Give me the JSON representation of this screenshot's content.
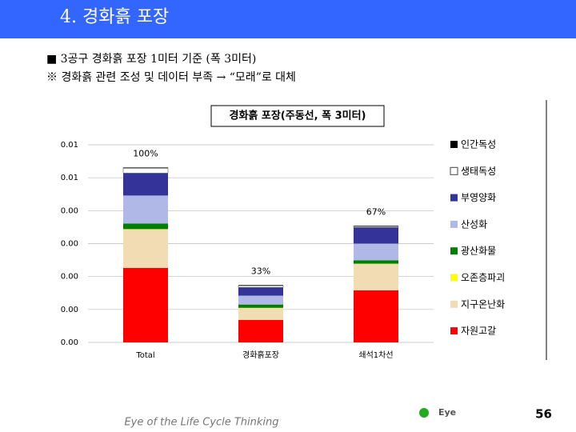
{
  "header": {
    "title": "4. 경화흙 포장"
  },
  "bullets": [
    "■ 3공구 경화흙 포장 1미터 기준 (폭 3미터)",
    "※ 경화흙 관련 조성 및 데이터 부족 → “모래”로 대체"
  ],
  "chart_data": {
    "type": "bar",
    "stacked": true,
    "title": "경화흙 포장(주동선, 폭 3미터)",
    "categories": [
      "Total",
      "경화흙포장",
      "쇄석1차선"
    ],
    "series": [
      {
        "name": "자원고갈",
        "color": "#ff0000",
        "values": [
          0.00226,
          0.00068,
          0.00158
        ]
      },
      {
        "name": "지구온난화",
        "color": "#f2dcb4",
        "values": [
          0.00117,
          0.00036,
          0.0008
        ]
      },
      {
        "name": "오존층파괴",
        "color": "#ffff00",
        "values": [
          1e-05,
          1e-05,
          1e-05
        ]
      },
      {
        "name": "광산화물",
        "color": "#008000",
        "values": [
          0.00017,
          0.0001,
          0.0001
        ]
      },
      {
        "name": "산성화",
        "color": "#b0b8e8",
        "values": [
          0.00085,
          0.00027,
          0.00051
        ]
      },
      {
        "name": "부영양화",
        "color": "#333399",
        "values": [
          0.00068,
          0.00025,
          0.00049
        ]
      },
      {
        "name": "생태독성",
        "color": "#ffffff",
        "values": [
          0.00015,
          5e-05,
          3e-05
        ]
      },
      {
        "name": "인간독성",
        "color": "#000000",
        "values": [
          2e-05,
          2e-05,
          2e-05
        ]
      }
    ],
    "annotations": [
      "100%",
      "33%",
      "67%"
    ],
    "ylim": [
      0,
      0.006
    ],
    "yticks": [
      {
        "value": 0,
        "label": "0.00"
      },
      {
        "value": 0.001,
        "label": "0.00"
      },
      {
        "value": 0.002,
        "label": "0.00"
      },
      {
        "value": 0.003,
        "label": "0.00"
      },
      {
        "value": 0.004,
        "label": "0.00"
      },
      {
        "value": 0.005,
        "label": "0.01"
      },
      {
        "value": 0.006,
        "label": "0.01"
      }
    ],
    "grid": true
  },
  "footer": {
    "tagline": "Eye of the Life Cycle Thinking",
    "logo": "Eye",
    "page": "56"
  }
}
